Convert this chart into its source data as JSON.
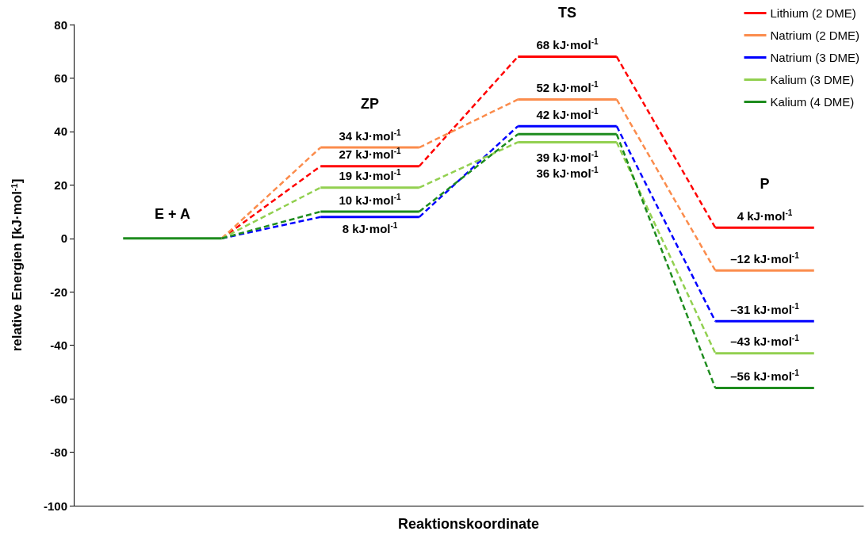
{
  "chart_data": {
    "type": "line",
    "xlabel": "Reaktionskoordinate",
    "ylabel": "relative Energien [kJ·mol$^{-1}$]",
    "categories": [
      null,
      null,
      null,
      null,
      null,
      null,
      null,
      null
    ],
    "ylim": [
      -100,
      80
    ],
    "yticks": [
      -100,
      -80,
      -60,
      -40,
      -20,
      0,
      20,
      40,
      60,
      80
    ],
    "grid": false,
    "legend": "top right",
    "marker": "none",
    "annotations": [
      "E + A",
      "ZP",
      "TS",
      "P"
    ],
    "series": [
      {
        "name": "Lithium (2 DME)",
        "color": "#ff0000",
        "values": [
          null,
          0,
          27,
          27,
          68,
          68,
          4,
          4
        ],
        "value_labels": [
          null,
          null,
          "27 kJ·mol$^{-1}$",
          null,
          "68 kJ·mol$^{-1}$",
          null,
          "4 kJ·mol$^{-1}$",
          null
        ]
      },
      {
        "name": "Natrium (2 DME)",
        "color": "#fb8c4c",
        "values": [
          null,
          0,
          34,
          34,
          52,
          52,
          -12,
          -12
        ],
        "value_labels": [
          null,
          null,
          "34 kJ·mol$^{-1}$",
          null,
          "52 kJ·mol$^{-1}$",
          null,
          "–12 kJ·mol$^{-1}$",
          null
        ]
      },
      {
        "name": "Natrium (3 DME)",
        "color": "#0000ff",
        "values": [
          null,
          0,
          8,
          8,
          42,
          42,
          -31,
          -31
        ],
        "value_labels": [
          null,
          null,
          "8 kJ·mol$^{-1}$",
          null,
          "42 kJ·mol$^{-1}$",
          null,
          "–31 kJ·mol$^{-1}$",
          null
        ]
      },
      {
        "name": "Kalium (3 DME)",
        "color": "#92d050",
        "values": [
          null,
          0,
          19,
          19,
          36,
          36,
          -43,
          -43
        ],
        "value_labels": [
          null,
          null,
          "19 kJ·mol$^{-1}$",
          null,
          "36 kJ·mol$^{-1}$",
          null,
          "–43 kJ·mol$^{-1}$",
          null
        ]
      },
      {
        "name": "Kalium (4 DME)",
        "color": "#1e8c1e",
        "values": [
          0,
          0,
          10,
          10,
          39,
          39,
          -56,
          -56
        ],
        "value_labels": [
          null,
          null,
          "10 kJ·mol$^{-1}$",
          null,
          "39 kJ·mol$^{-1}$",
          null,
          "–56 kJ·mol$^{-1}$",
          null
        ]
      }
    ]
  }
}
